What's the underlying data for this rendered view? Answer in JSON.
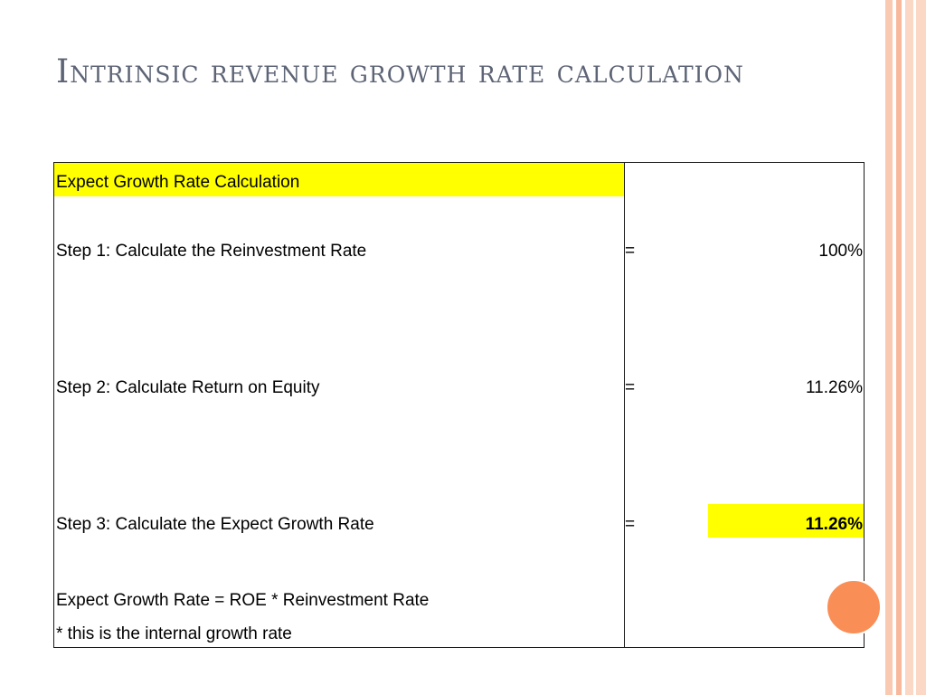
{
  "title": "Intrinsic revenue growth rate calculation",
  "table": {
    "header": "Expect Growth Rate Calculation",
    "steps": [
      {
        "label": "Step 1: Calculate the Reinvestment Rate",
        "operator": "=",
        "value": "100%"
      },
      {
        "label": "Step 2:  Calculate Return on Equity",
        "operator": "=",
        "value": "11.26%"
      },
      {
        "label": "Step 3: Calculate the Expect Growth Rate",
        "operator": "=",
        "value": "11.26%"
      }
    ],
    "formula": "Expect Growth Rate =  ROE * Reinvestment Rate",
    "note": "* this is the internal growth rate"
  },
  "colors": {
    "highlight": "#ffff00",
    "title": "#5d6475",
    "accent_circle": "#fa8e57",
    "stripe": "#f9c9b2"
  }
}
